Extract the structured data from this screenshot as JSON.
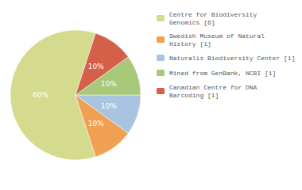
{
  "chart_data": {
    "type": "pie",
    "categories": [
      "Centre for Biodiversity\nGenomics [6]",
      "Swedish Museum of Natural\nHistory [1]",
      "Naturalis Biodiversity Center [1]",
      "Mined from GenBank, NCBI [1]",
      "Canadian Centre for DNA\nBarcoding [1]"
    ],
    "values": [
      60,
      10,
      10,
      10,
      10
    ],
    "value_labels": [
      "60%",
      "10%",
      "10%",
      "10%",
      "10%"
    ],
    "colors": [
      "#d4db8e",
      "#f0a050",
      "#a8c4e0",
      "#a8c87a",
      "#d4604a"
    ],
    "data_labels": true,
    "legend": "upper right"
  }
}
